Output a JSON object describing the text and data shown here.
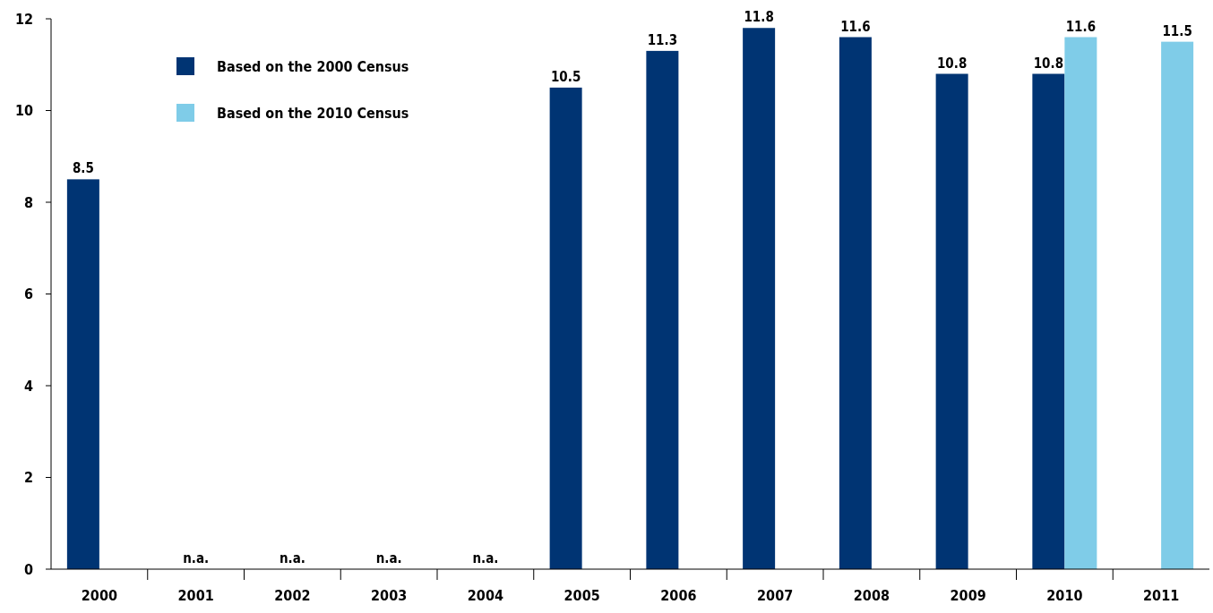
{
  "chart_data": {
    "type": "bar",
    "categories": [
      "2000",
      "2001",
      "2002",
      "2003",
      "2004",
      "2005",
      "2006",
      "2007",
      "2008",
      "2009",
      "2010",
      "2011"
    ],
    "series": [
      {
        "name": "Based on the 2000 Census",
        "color": "#003473",
        "values": [
          8.5,
          null,
          null,
          null,
          null,
          10.5,
          11.3,
          11.8,
          11.6,
          10.8,
          10.8,
          null
        ],
        "value_labels": [
          "8.5",
          "n.a.",
          "n.a.",
          "n.a.",
          "n.a.",
          "10.5",
          "11.3",
          "11.8",
          "11.6",
          "10.8",
          "10.8",
          null
        ]
      },
      {
        "name": "Based on the 2010 Census",
        "color": "#7fcce8",
        "values": [
          null,
          null,
          null,
          null,
          null,
          null,
          null,
          null,
          null,
          null,
          11.6,
          11.5
        ],
        "value_labels": [
          null,
          null,
          null,
          null,
          null,
          null,
          null,
          null,
          null,
          null,
          "11.6",
          "11.5"
        ]
      }
    ],
    "ylim": [
      0,
      12
    ],
    "yticks": [
      0,
      2,
      4,
      6,
      8,
      10,
      12
    ],
    "grid": false,
    "legend": "top left"
  }
}
